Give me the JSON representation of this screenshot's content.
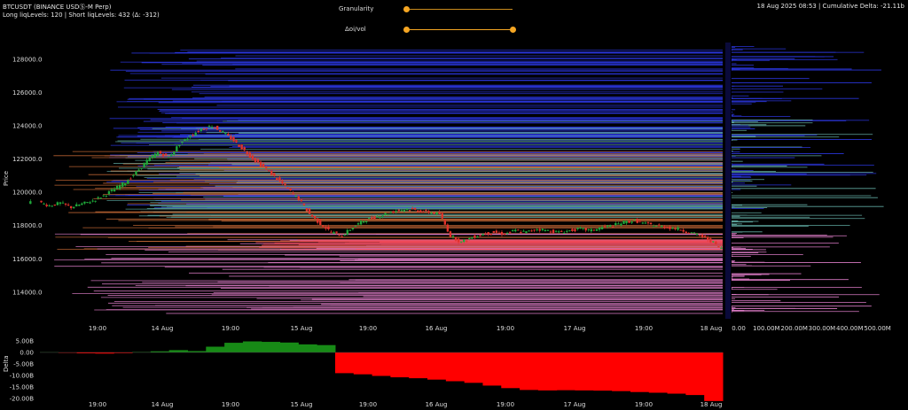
{
  "header": {
    "symbol_line": "BTCUSDT (BINANCE USDⓈ-M Perp)",
    "liq_line": "Long liqLevels: 120 | Short liqLevels: 432 (Δ: -312)",
    "status_line": "18 Aug 2025 08:53 | Cumulative Delta: -21.11b"
  },
  "controls": {
    "granularity_label": "Granularity",
    "granularity_value": 0.0,
    "oivol_label": "Δoi/vol",
    "oivol_range": [
      0.0,
      1.0
    ]
  },
  "colors": {
    "background": "#000000",
    "up_candle": "#1fa83a",
    "down_candle": "#e0332b",
    "level_blue": "#2a35d8",
    "level_teal": "#5fa8a0",
    "level_orange": "#d4703a",
    "level_pink": "#d879c2",
    "level_red": "#f04a5a",
    "delta_pos": "#178a16",
    "delta_neg": "#ff0000",
    "accent": "#f5a623"
  },
  "chart_data": [
    {
      "type": "line",
      "title": "",
      "ylabel": "Price",
      "ylim": [
        112400,
        129000
      ],
      "y_ticks": [
        "114000.0",
        "116000.0",
        "118000.0",
        "120000.0",
        "122000.0",
        "124000.0",
        "126000.0",
        "128000.0"
      ],
      "x_ticks": [
        "19:00",
        "14 Aug",
        "19:00",
        "15 Aug",
        "19:00",
        "16 Aug",
        "19:00",
        "17 Aug",
        "19:00",
        "18 Aug"
      ],
      "series": [
        {
          "values": [
            119400,
            119200,
            119350,
            119100,
            119300,
            119500,
            119800,
            120200,
            120600,
            121200,
            121900,
            122400,
            122100,
            122900,
            123400,
            123800,
            124000,
            123600,
            123100,
            122500,
            121900,
            121400,
            120800,
            120200,
            119600,
            118700,
            118100,
            117600,
            117400,
            117900,
            118300,
            118500,
            118700,
            118900,
            119000,
            118900,
            118800,
            118700,
            117400,
            117000,
            117300,
            117500,
            117600,
            117500,
            117700,
            117600,
            117800,
            117700,
            117600,
            117700,
            117800,
            117700,
            117900,
            118000,
            118200,
            118300,
            118100,
            118000,
            117900,
            117800,
            117600,
            117400,
            117100,
            116600
          ]
        }
      ],
      "liquidation_levels": {
        "blue_range": [
          119000,
          128800
        ],
        "teal_range": [
          118500,
          124500
        ],
        "orange_range": [
          116500,
          122500
        ],
        "pink_range": [
          112600,
          117600
        ]
      }
    },
    {
      "type": "bar",
      "title": "",
      "ylabel": "Delta",
      "ylim": [
        -20,
        5
      ],
      "y_ticks": [
        "5.00B",
        "0.00",
        "-5.00B",
        "-10.00B",
        "-15.00B",
        "-20.00B"
      ],
      "x_ticks": [
        "19:00",
        "14 Aug",
        "19:00",
        "15 Aug",
        "19:00",
        "16 Aug",
        "19:00",
        "17 Aug",
        "19:00",
        "18 Aug"
      ],
      "values": [
        0.1,
        -0.2,
        -0.4,
        -0.5,
        -0.3,
        0.2,
        0.5,
        1.0,
        0.6,
        2.5,
        4.2,
        4.8,
        4.6,
        4.3,
        3.5,
        3.2,
        -9.0,
        -9.5,
        -10.2,
        -10.8,
        -11.2,
        -11.8,
        -12.5,
        -13.2,
        -14.4,
        -15.5,
        -16.3,
        -16.5,
        -16.4,
        -16.5,
        -16.6,
        -16.8,
        -17.2,
        -17.5,
        -17.9,
        -18.5,
        -21.1
      ]
    },
    {
      "type": "bar",
      "title": "",
      "xlabel": "",
      "x_ticks": [
        "0.00",
        "100.00M",
        "200.00M",
        "300.00M",
        "400.00M",
        "500.00M"
      ],
      "xlim": [
        0,
        500
      ]
    }
  ]
}
